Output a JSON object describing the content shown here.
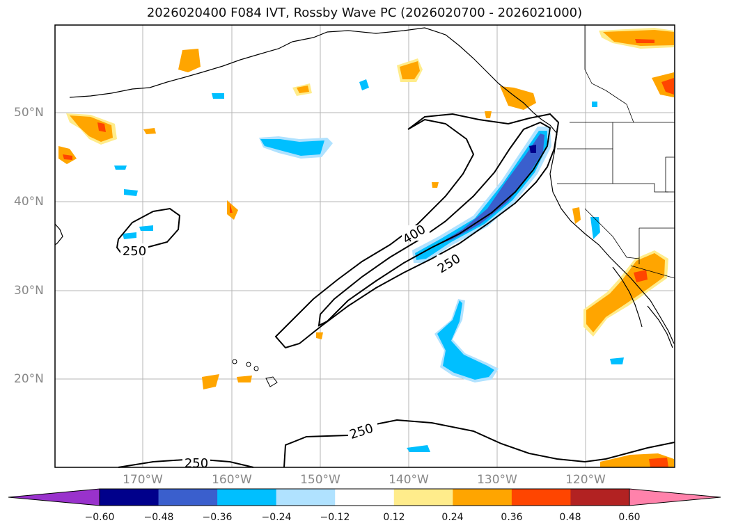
{
  "title": "2026020400 F084 IVT, Rossby Wave PC (2026020700 - 2026021000)",
  "lat_labels": [
    "50°N",
    "40°N",
    "30°N",
    "20°N"
  ],
  "lon_labels": [
    "170°W",
    "160°W",
    "150°W",
    "140°W",
    "130°W",
    "120°W"
  ],
  "contour_labels": [
    "250",
    "400",
    "250",
    "250",
    "250"
  ],
  "colorbar": {
    "ticks": [
      "−0.60",
      "−0.48",
      "−0.36",
      "−0.24",
      "−0.12",
      "0.12",
      "0.24",
      "0.36",
      "0.48",
      "0.60"
    ],
    "colors": [
      "#9932cc",
      "#00008b",
      "#3a5fcd",
      "#00bfff",
      "#b0e2ff",
      "#ffffff",
      "#ffec8b",
      "#ffa500",
      "#ff4500",
      "#b22222",
      "#ff82ab"
    ]
  }
}
